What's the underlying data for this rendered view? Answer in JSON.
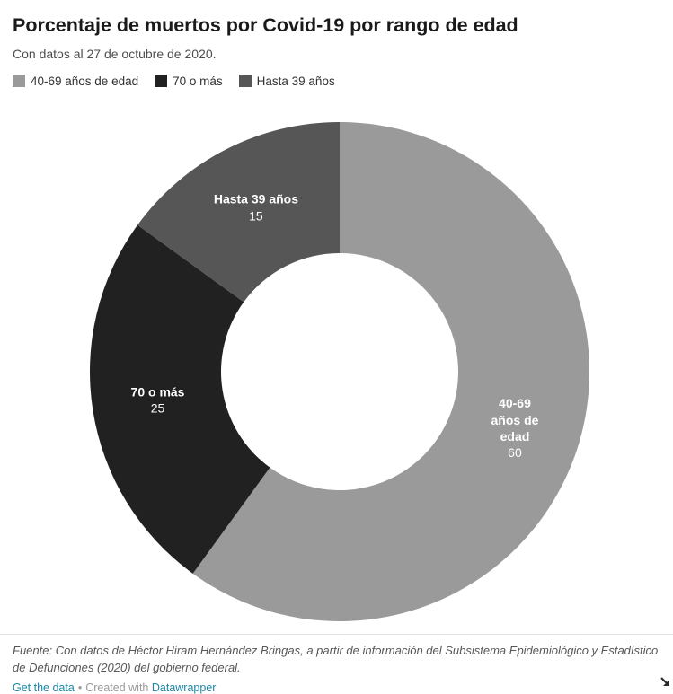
{
  "header": {
    "title": "Porcentaje de muertos por Covid-19 por rango de edad",
    "subtitle": "Con datos al 27 de octubre de 2020."
  },
  "chart_data": {
    "type": "pie",
    "donut": true,
    "direction": "clockwise",
    "start_angle_deg": 0,
    "title": "Porcentaje de muertos por Covid-19 por rango de edad",
    "slices": [
      {
        "label": "40-69 años de edad",
        "label_lines": [
          "40-69",
          "años de",
          "edad"
        ],
        "value": 60,
        "color": "#9a9a9a"
      },
      {
        "label": "70 o más",
        "label_lines": [
          "70 o más"
        ],
        "value": 25,
        "color": "#212121"
      },
      {
        "label": "Hasta 39 años",
        "label_lines": [
          "Hasta 39 años"
        ],
        "value": 15,
        "color": "#565656"
      }
    ],
    "label_text_color": "#ffffff",
    "total": 100
  },
  "footer": {
    "source": "Fuente: Con datos de Héctor Hiram Hernández Bringas, a partir de información del Subsistema Epidemiológico y Estadístico de Defunciones (2020) del gobierno federal.",
    "links": {
      "get_data": "Get the data",
      "separator": "•",
      "created_with": "Created with",
      "datawrapper": "Datawrapper"
    },
    "link_color": "#1a87a8",
    "muted_color": "#9a9a9a"
  }
}
